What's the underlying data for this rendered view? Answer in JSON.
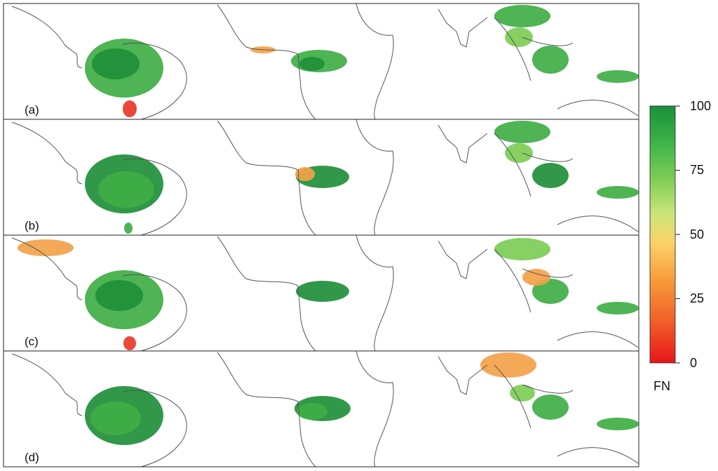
{
  "panels": [
    {
      "label": "(a)"
    },
    {
      "label": "(b)"
    },
    {
      "label": "(c)"
    },
    {
      "label": "(d)"
    }
  ],
  "colorbar": {
    "title": "FN",
    "ticks": [
      "100",
      "75",
      "50",
      "25",
      "0"
    ],
    "stops": [
      "#e8161b",
      "#f05a28",
      "#f79b3a",
      "#fbd36a",
      "#c9e57a",
      "#7ccd55",
      "#3fb54a",
      "#1a8f3a"
    ]
  },
  "colors": {
    "forest_dark": "#1f8f3a",
    "forest_mid": "#3fae45",
    "forest_light": "#7ccd55",
    "mixed_orange": "#f3a24a",
    "low_red": "#e63a2a",
    "coastline": "#555555",
    "frame": "#222222"
  }
}
